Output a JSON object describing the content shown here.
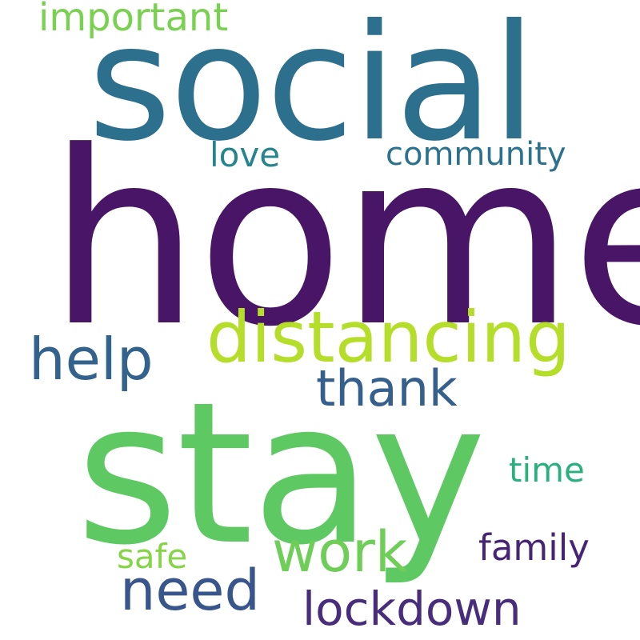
{
  "word_cloud": {
    "words": [
      {
        "id": "home",
        "text": "home",
        "color": "#481567"
      },
      {
        "id": "stay",
        "text": "stay",
        "color": "#5ec962"
      },
      {
        "id": "social",
        "text": "social",
        "color": "#2d708e"
      },
      {
        "id": "distancing",
        "text": "distancing",
        "color": "#b5de2b"
      },
      {
        "id": "help",
        "text": "help",
        "color": "#33638d"
      },
      {
        "id": "work",
        "text": "work",
        "color": "#6ece58"
      },
      {
        "id": "need",
        "text": "need",
        "color": "#39568c"
      },
      {
        "id": "thank",
        "text": "thank",
        "color": "#355f8d"
      },
      {
        "id": "lockdown",
        "text": "lockdown",
        "color": "#472d7b"
      },
      {
        "id": "family",
        "text": "family",
        "color": "#482475"
      },
      {
        "id": "important",
        "text": "important",
        "color": "#7ad151"
      },
      {
        "id": "time",
        "text": "time",
        "color": "#2ab07f"
      },
      {
        "id": "safe",
        "text": "safe",
        "color": "#86d549"
      },
      {
        "id": "love",
        "text": "love",
        "color": "#25858e"
      },
      {
        "id": "community",
        "text": "community",
        "color": "#2c728e"
      }
    ]
  }
}
